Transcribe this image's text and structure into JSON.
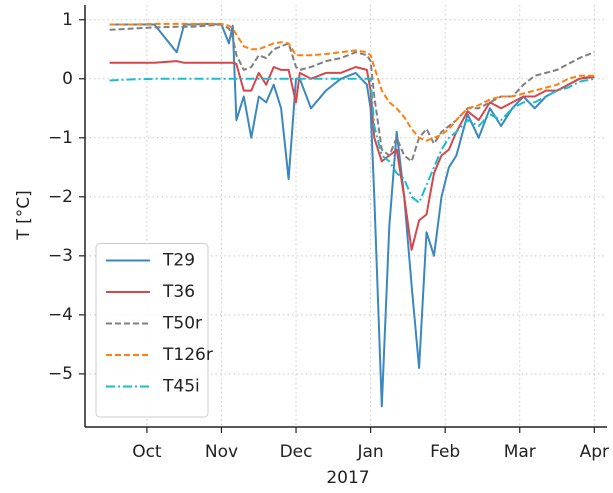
{
  "chart_data": {
    "type": "line",
    "xlabel": "2017",
    "ylabel": "T [°C]",
    "x": [
      9.5,
      9.8,
      10.1,
      10.4,
      10.5,
      10.6,
      10.8,
      11.0,
      11.1,
      11.15,
      11.2,
      11.3,
      11.4,
      11.5,
      11.6,
      11.7,
      11.8,
      11.9,
      12.0,
      12.05,
      12.2,
      12.4,
      12.6,
      12.8,
      12.95,
      13.0,
      13.05,
      13.15,
      13.25,
      13.35,
      13.45,
      13.55,
      13.65,
      13.75,
      13.85,
      13.95,
      14.05,
      14.15,
      14.3,
      14.45,
      14.6,
      14.75,
      14.9,
      15.05,
      15.2,
      15.35,
      15.5,
      15.65,
      15.8,
      16.0
    ],
    "series": [
      {
        "name": "T29",
        "color": "#3b87c0",
        "linestyle": "solid",
        "values": [
          0.92,
          0.92,
          0.92,
          0.45,
          0.92,
          0.92,
          0.93,
          0.92,
          0.6,
          0.9,
          -0.7,
          -0.3,
          -1.0,
          -0.3,
          -0.4,
          -0.1,
          -0.5,
          -1.7,
          0.0,
          0.0,
          -0.5,
          -0.2,
          0.0,
          0.1,
          -0.1,
          -0.5,
          -2.0,
          -5.55,
          -2.5,
          -0.9,
          -2.0,
          -3.5,
          -4.9,
          -2.6,
          -3.0,
          -2.0,
          -1.5,
          -1.3,
          -0.6,
          -1.0,
          -0.5,
          -0.8,
          -0.5,
          -0.3,
          -0.5,
          -0.3,
          -0.2,
          -0.1,
          0.0,
          0.05
        ]
      },
      {
        "name": "T36",
        "color": "#d8464a",
        "linestyle": "solid",
        "values": [
          0.27,
          0.27,
          0.27,
          0.3,
          0.27,
          0.27,
          0.27,
          0.27,
          0.27,
          0.27,
          0.25,
          -0.2,
          -0.2,
          0.1,
          -0.1,
          0.2,
          0.15,
          0.15,
          -0.4,
          0.1,
          0.0,
          0.1,
          0.1,
          0.2,
          0.15,
          -0.2,
          -1.0,
          -1.4,
          -1.3,
          -1.2,
          -2.0,
          -2.9,
          -2.4,
          -2.3,
          -1.6,
          -1.3,
          -1.2,
          -0.9,
          -0.55,
          -0.7,
          -0.4,
          -0.5,
          -0.4,
          -0.3,
          -0.3,
          -0.2,
          -0.2,
          -0.1,
          0.0,
          0.03
        ]
      },
      {
        "name": "T50r",
        "color": "#7f7f7f",
        "linestyle": "dashed",
        "values": [
          0.83,
          0.85,
          0.87,
          0.88,
          0.88,
          0.88,
          0.9,
          0.92,
          0.85,
          0.7,
          0.4,
          0.15,
          0.2,
          0.4,
          0.35,
          0.5,
          0.55,
          0.6,
          0.2,
          0.15,
          0.2,
          0.3,
          0.35,
          0.45,
          0.4,
          0.3,
          -0.3,
          -1.2,
          -1.3,
          -1.0,
          -1.3,
          -1.4,
          -1.0,
          -0.85,
          -1.1,
          -0.9,
          -0.8,
          -0.7,
          -0.5,
          -0.5,
          -0.4,
          -0.3,
          -0.3,
          -0.1,
          0.05,
          0.1,
          0.15,
          0.25,
          0.35,
          0.45
        ]
      },
      {
        "name": "T126r",
        "color": "#ff7f0e",
        "linestyle": "dashed",
        "values": [
          0.92,
          0.92,
          0.93,
          0.93,
          0.93,
          0.93,
          0.93,
          0.93,
          0.9,
          0.85,
          0.75,
          0.55,
          0.5,
          0.5,
          0.55,
          0.6,
          0.62,
          0.6,
          0.4,
          0.4,
          0.4,
          0.42,
          0.45,
          0.48,
          0.45,
          0.4,
          0.2,
          -0.2,
          -0.4,
          -0.5,
          -0.65,
          -0.85,
          -1.0,
          -1.05,
          -1.0,
          -0.95,
          -0.85,
          -0.7,
          -0.5,
          -0.45,
          -0.35,
          -0.3,
          -0.3,
          -0.25,
          -0.2,
          -0.15,
          -0.1,
          0.0,
          0.05,
          0.05
        ]
      },
      {
        "name": "T45i",
        "color": "#17becf",
        "linestyle": "dashdot",
        "values": [
          -0.03,
          -0.01,
          0.0,
          0.0,
          0.0,
          0.0,
          0.0,
          0.0,
          0.0,
          0.0,
          0.0,
          0.0,
          0.0,
          0.0,
          0.0,
          0.0,
          0.0,
          0.0,
          0.0,
          0.0,
          0.0,
          0.0,
          0.0,
          0.0,
          0.0,
          0.0,
          -0.8,
          -1.3,
          -1.4,
          -1.6,
          -1.7,
          -2.0,
          -2.1,
          -1.8,
          -1.5,
          -1.2,
          -1.0,
          -0.9,
          -0.7,
          -0.8,
          -0.6,
          -0.7,
          -0.5,
          -0.4,
          -0.4,
          -0.3,
          -0.2,
          -0.15,
          -0.05,
          0.0
        ]
      }
    ],
    "xlim": [
      9.17,
      16.17
    ],
    "xticks": [
      {
        "value": 10,
        "label": "Oct"
      },
      {
        "value": 11,
        "label": "Nov"
      },
      {
        "value": 12,
        "label": "Dec"
      },
      {
        "value": 13,
        "label": "Jan"
      },
      {
        "value": 14,
        "label": "Feb"
      },
      {
        "value": 15,
        "label": "Mar"
      },
      {
        "value": 16,
        "label": "Apr"
      }
    ],
    "ylim": [
      -5.9,
      1.25
    ],
    "yticks": [
      {
        "value": -5,
        "label": "−5"
      },
      {
        "value": -4,
        "label": "−4"
      },
      {
        "value": -3,
        "label": "−3"
      },
      {
        "value": -2,
        "label": "−2"
      },
      {
        "value": -1,
        "label": "−1"
      },
      0,
      1
    ],
    "grid": true,
    "legend": "lower left"
  }
}
